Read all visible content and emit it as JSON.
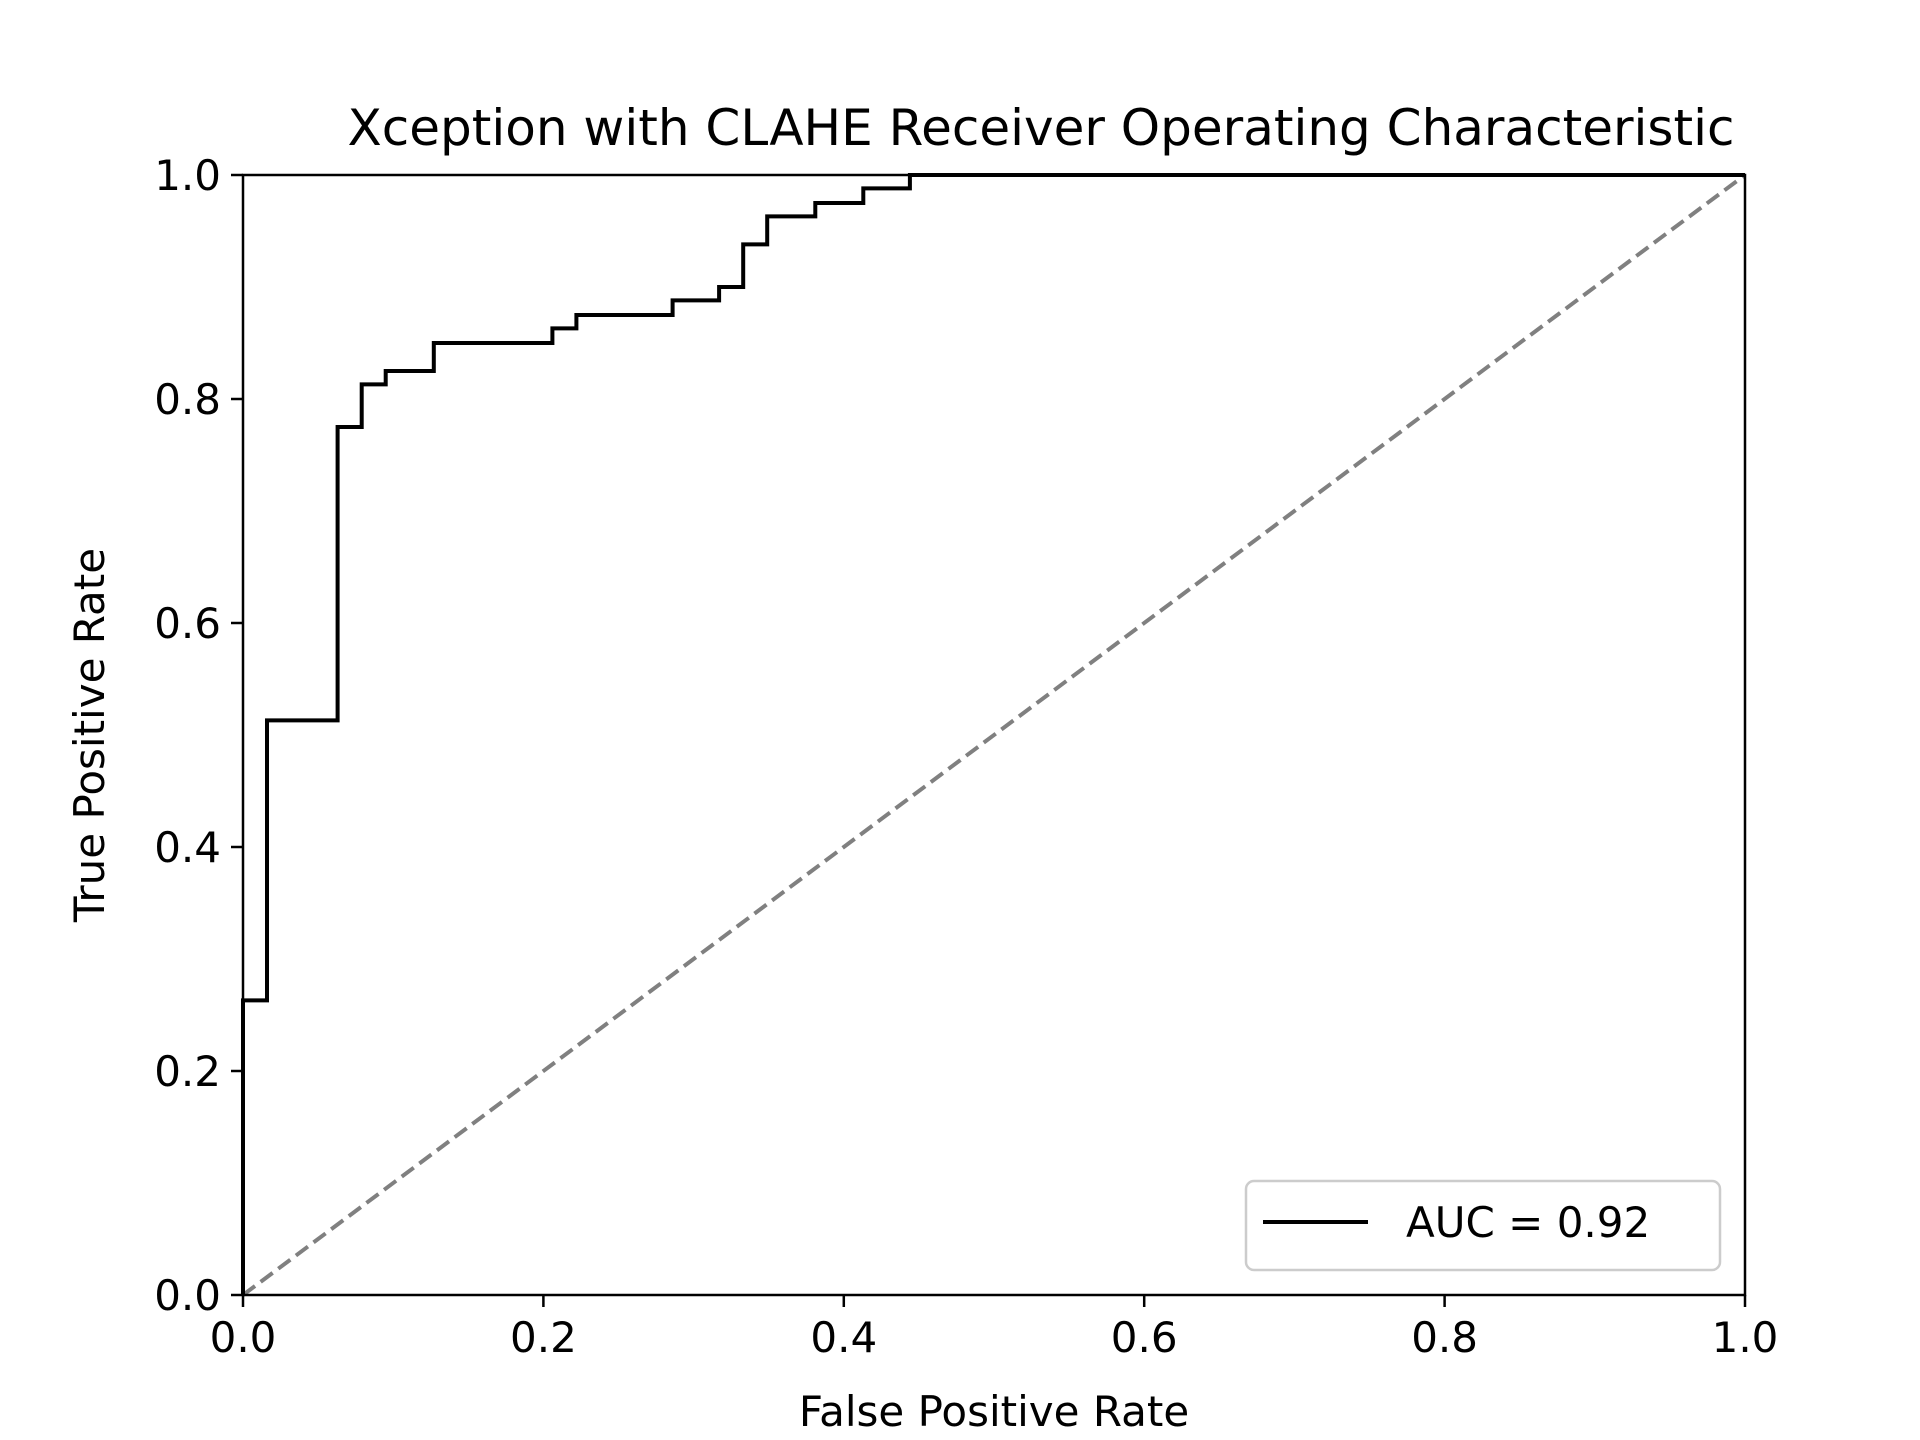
{
  "chart_data": {
    "type": "line",
    "title": "Xception with CLAHE Receiver Operating Characteristic",
    "xlabel": "False Positive Rate",
    "ylabel": "True Positive Rate",
    "xlim": [
      0.0,
      1.0
    ],
    "ylim": [
      0.0,
      1.0
    ],
    "xticks": [
      "0.0",
      "0.2",
      "0.4",
      "0.6",
      "0.8",
      "1.0"
    ],
    "yticks": [
      "0.0",
      "0.2",
      "0.4",
      "0.6",
      "0.8",
      "1.0"
    ],
    "grid": false,
    "legend_position": "lower-right",
    "series": [
      {
        "name": "AUC = 0.92",
        "color": "#000000",
        "style": "solid-step",
        "points": [
          [
            0.0,
            0.0
          ],
          [
            0.0,
            0.263
          ],
          [
            0.016,
            0.263
          ],
          [
            0.016,
            0.513
          ],
          [
            0.063,
            0.513
          ],
          [
            0.063,
            0.775
          ],
          [
            0.079,
            0.775
          ],
          [
            0.079,
            0.813
          ],
          [
            0.095,
            0.813
          ],
          [
            0.095,
            0.825
          ],
          [
            0.127,
            0.825
          ],
          [
            0.127,
            0.85
          ],
          [
            0.206,
            0.85
          ],
          [
            0.206,
            0.863
          ],
          [
            0.222,
            0.863
          ],
          [
            0.222,
            0.875
          ],
          [
            0.286,
            0.875
          ],
          [
            0.286,
            0.888
          ],
          [
            0.317,
            0.888
          ],
          [
            0.317,
            0.9
          ],
          [
            0.333,
            0.9
          ],
          [
            0.333,
            0.938
          ],
          [
            0.349,
            0.938
          ],
          [
            0.349,
            0.963
          ],
          [
            0.381,
            0.963
          ],
          [
            0.381,
            0.975
          ],
          [
            0.413,
            0.975
          ],
          [
            0.413,
            0.988
          ],
          [
            0.444,
            0.988
          ],
          [
            0.444,
            1.0
          ],
          [
            1.0,
            1.0
          ]
        ]
      },
      {
        "color": "#808080",
        "style": "dashed",
        "points": [
          [
            0.0,
            0.0
          ],
          [
            1.0,
            1.0
          ]
        ]
      }
    ]
  }
}
